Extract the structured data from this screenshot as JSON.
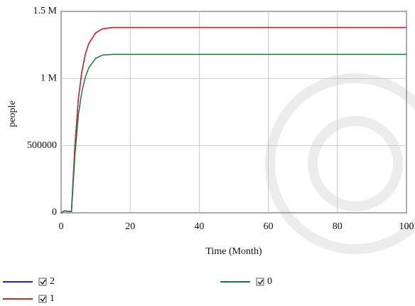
{
  "chart_data": {
    "type": "line",
    "y_label": "people",
    "x_label": "Time (Month)",
    "x": [
      0,
      1,
      2,
      3,
      4,
      5,
      6,
      7,
      8,
      10,
      12,
      15,
      20,
      40,
      60,
      80,
      100
    ],
    "series": [
      {
        "name": "2",
        "color": "#1f1fe0",
        "values": [
          0,
          15000,
          10000,
          10000,
          500000,
          850000,
          1050000,
          1180000,
          1260000,
          1340000,
          1370000,
          1380000,
          1380000,
          1380000,
          1380000,
          1380000,
          1380000
        ]
      },
      {
        "name": "1",
        "color": "#e0202a",
        "values": [
          0,
          15000,
          10000,
          10000,
          500000,
          850000,
          1050000,
          1180000,
          1260000,
          1340000,
          1370000,
          1380000,
          1380000,
          1380000,
          1380000,
          1380000,
          1380000
        ]
      },
      {
        "name": "0",
        "color": "#1c7a3a",
        "values": [
          0,
          13000,
          9000,
          9000,
          430000,
          730000,
          900000,
          1010000,
          1080000,
          1150000,
          1175000,
          1180000,
          1180000,
          1180000,
          1180000,
          1180000,
          1180000
        ]
      }
    ],
    "xlim": [
      0,
      100
    ],
    "xticks": [
      0,
      20,
      40,
      60,
      80,
      100
    ],
    "ylim": [
      0,
      1500000
    ],
    "yticks": [
      0,
      500000,
      {
        "value": 1000000,
        "label": "1 M"
      },
      {
        "value": 1500000,
        "label": "1.5 M"
      }
    ],
    "grid": true
  }
}
